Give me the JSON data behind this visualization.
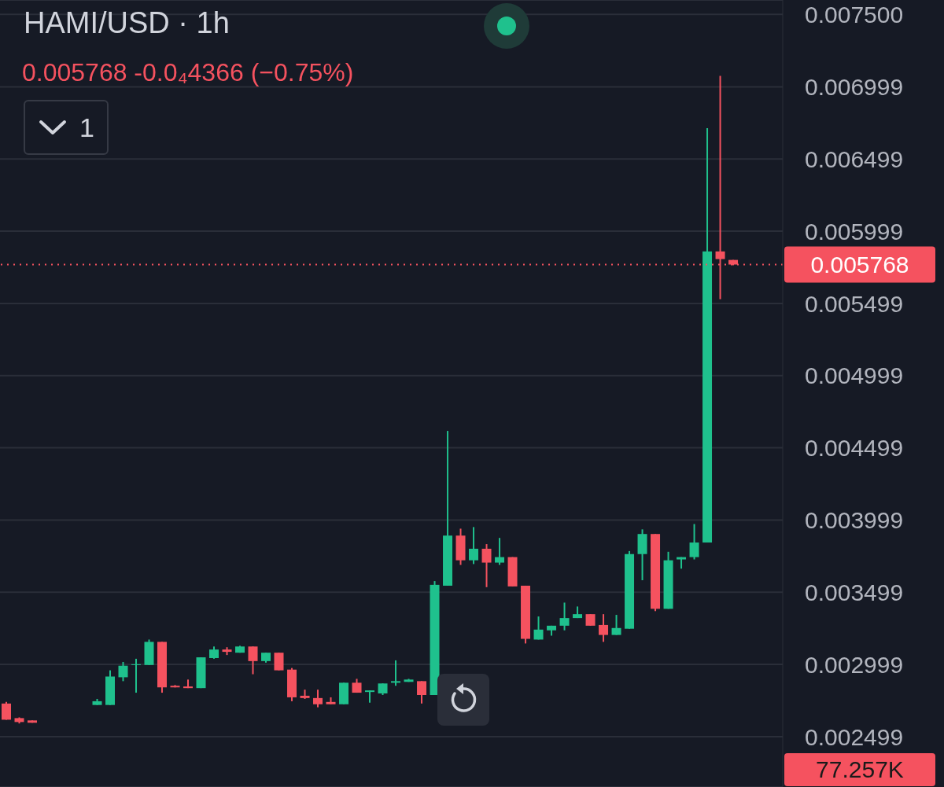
{
  "chart_data": {
    "type": "candlestick",
    "title": "HAMI/USD · 1h",
    "subtitle": "0.005768 -0.0₄4366 (−0.75%)",
    "annotations": [
      "1",
      "77.257K"
    ],
    "categories": [
      null,
      null,
      null,
      null,
      null,
      null,
      null,
      null,
      null,
      null,
      null,
      null,
      null,
      null,
      null,
      null,
      null,
      null,
      null,
      null,
      null,
      null,
      null,
      null,
      null,
      null,
      null,
      null,
      null,
      null,
      null,
      null,
      null,
      null,
      null,
      null,
      null,
      null,
      null,
      null,
      null,
      null,
      null,
      null,
      null,
      null,
      null,
      null,
      null,
      null,
      null,
      null,
      null,
      null,
      null,
      null,
      null
    ],
    "ohlc": [
      [
        0.002728,
        0.002739,
        0.002616,
        0.002616
      ],
      [
        0.002627,
        0.002632,
        0.00259,
        0.0026
      ],
      [
        0.002611,
        0.002611,
        0.002595,
        0.002595
      ],
      null,
      null,
      null,
      null,
      [
        0.002718,
        0.00276,
        0.002718,
        0.002744
      ],
      [
        0.002718,
        0.002958,
        0.002718,
        0.002915
      ],
      [
        0.00291,
        0.003016,
        0.002883,
        0.00299
      ],
      [
        0.002995,
        0.003038,
        0.002803,
        0.003
      ],
      [
        0.002995,
        0.003171,
        0.002995,
        0.003155
      ],
      [
        0.003155,
        0.003155,
        0.002803,
        0.00284
      ],
      [
        0.002851,
        0.002856,
        0.00284,
        0.00284
      ],
      [
        0.002846,
        0.002894,
        0.002835,
        0.002835
      ],
      [
        0.002835,
        0.003048,
        0.002835,
        0.003048
      ],
      [
        0.003043,
        0.003123,
        0.003038,
        0.003102
      ],
      [
        0.003102,
        0.003118,
        0.003064,
        0.003086
      ],
      [
        0.00308,
        0.003128,
        0.00308,
        0.003123
      ],
      [
        0.003123,
        0.003123,
        0.002931,
        0.003022
      ],
      [
        0.003022,
        0.00308,
        0.003011,
        0.00308
      ],
      [
        0.00308,
        0.00308,
        0.002958,
        0.002958
      ],
      [
        0.002963,
        0.002974,
        0.002744,
        0.002771
      ],
      [
        0.002782,
        0.002824,
        0.00276,
        0.002766
      ],
      [
        0.002766,
        0.002824,
        0.002702,
        0.002723
      ],
      [
        0.002739,
        0.002771,
        0.002723,
        0.002723
      ],
      [
        0.002723,
        0.002872,
        0.002723,
        0.002872
      ],
      [
        0.002872,
        0.002899,
        0.002803,
        0.002803
      ],
      [
        0.002808,
        0.002819,
        0.002734,
        0.002819
      ],
      [
        0.002798,
        0.002867,
        0.002787,
        0.002867
      ],
      [
        0.002872,
        0.003027,
        0.002851,
        0.002883
      ],
      [
        0.002878,
        0.002899,
        0.002878,
        0.002894
      ],
      [
        0.002883,
        0.002883,
        0.002728,
        0.002787
      ],
      [
        0.002787,
        0.003576,
        0.002787,
        0.00355
      ],
      [
        0.003544,
        0.004616,
        0.003544,
        0.003891
      ],
      [
        0.003891,
        0.003939,
        0.003688,
        0.00372
      ],
      [
        0.00372,
        0.00395,
        0.003694,
        0.0038
      ],
      [
        0.0038,
        0.003832,
        0.003534,
        0.003704
      ],
      [
        0.003704,
        0.003875,
        0.003688,
        0.003742
      ],
      [
        0.003742,
        0.003742,
        0.003539,
        0.003539
      ],
      [
        0.003544,
        0.003544,
        0.003144,
        0.003176
      ],
      [
        0.003171,
        0.003331,
        0.003171,
        0.00324
      ],
      [
        0.003235,
        0.003267,
        0.003198,
        0.003267
      ],
      [
        0.003267,
        0.003427,
        0.003235,
        0.00332
      ],
      [
        0.00332,
        0.0034,
        0.00332,
        0.003347
      ],
      [
        0.003347,
        0.003347,
        0.003267,
        0.003267
      ],
      [
        0.003272,
        0.003347,
        0.003155,
        0.003203
      ],
      [
        0.003203,
        0.003342,
        0.003203,
        0.003251
      ],
      [
        0.003246,
        0.003784,
        0.003246,
        0.003763
      ],
      [
        0.003763,
        0.003934,
        0.003582,
        0.003902
      ],
      [
        0.003902,
        0.003902,
        0.003368,
        0.003384
      ],
      [
        0.003384,
        0.003779,
        0.003384,
        0.00372
      ],
      [
        0.003726,
        0.003742,
        0.003662,
        0.003742
      ],
      [
        0.003742,
        0.003971,
        0.003726,
        0.003843
      ],
      [
        0.003843,
        0.006712,
        0.003843,
        0.005859
      ],
      [
        0.005859,
        0.007075,
        0.005528,
        0.005806
      ],
      [
        0.0058,
        0.0058,
        0.005763,
        0.005768
      ]
    ],
    "colors": [
      "#f5525f",
      "#f5525f",
      "#f5525f",
      null,
      null,
      null,
      null,
      "#1fc18d",
      "#1fc18d",
      "#1fc18d",
      "#1fc18d",
      "#1fc18d",
      "#f5525f",
      "#f5525f",
      "#f5525f",
      "#1fc18d",
      "#1fc18d",
      "#f5525f",
      "#1fc18d",
      "#f5525f",
      "#1fc18d",
      "#f5525f",
      "#f5525f",
      "#f5525f",
      "#f5525f",
      "#f5525f",
      "#1fc18d",
      "#f5525f",
      "#1fc18d",
      "#1fc18d",
      "#1fc18d",
      "#1fc18d",
      "#f5525f",
      "#1fc18d",
      "#1fc18d",
      "#f5525f",
      "#1fc18d",
      "#f5525f",
      "#1fc18d",
      "#f5525f",
      "#f5525f",
      "#1fc18d",
      "#1fc18d",
      "#1fc18d",
      "#1fc18d",
      "#f5525f",
      "#f5525f",
      "#1fc18d",
      "#1fc18d",
      "#1fc18d",
      "#f5525f",
      "#1fc18d",
      "#1fc18d",
      "#1fc18d",
      "#1fc18d",
      "#f5525f",
      "#f5525f"
    ],
    "ylim": [
      0.00215,
      0.0076
    ],
    "yticks": [
      0.002499,
      0.002999,
      0.003499,
      0.003999,
      0.004499,
      0.004999,
      0.005499,
      0.005999,
      0.006499,
      0.006999,
      {
        "value": 0.0075,
        "label": "0.007500"
      }
    ],
    "grid": "y",
    "tick_labels": "y",
    "ref_lines": [
      {
        "axis": "y",
        "value": 0.005768,
        "label": "0.005768",
        "color": "#f5525f",
        "line_style": "dotted"
      }
    ]
  }
}
